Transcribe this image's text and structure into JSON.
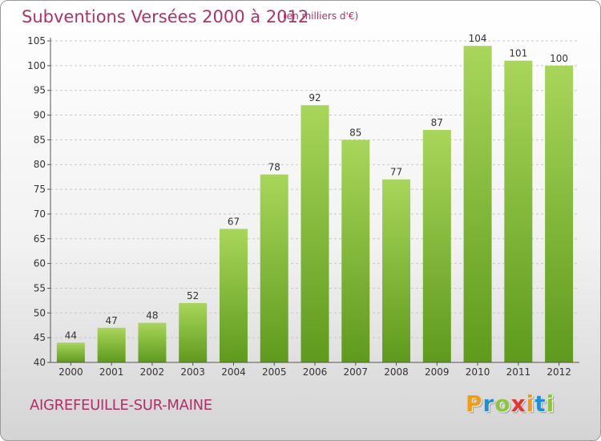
{
  "header": {
    "title": "Subventions Versées 2000 à 2012",
    "subtitle": "(en milliers d'€)"
  },
  "footer": {
    "commune": "AIGREFEUILLE-SUR-MAINE",
    "brand_letters": [
      "P",
      "r",
      "o",
      "x",
      "i",
      "t",
      "i"
    ],
    "brand_colors": [
      "#f39c12",
      "#1f8fd6",
      "#8cc63f",
      "#e8342f",
      "#f39c12",
      "#1f8fd6",
      "#8cc63f"
    ]
  },
  "chart_data": {
    "type": "bar",
    "categories": [
      "2000",
      "2001",
      "2002",
      "2003",
      "2004",
      "2005",
      "2006",
      "2007",
      "2008",
      "2009",
      "2010",
      "2011",
      "2012"
    ],
    "values": [
      44,
      47,
      48,
      52,
      67,
      78,
      92,
      85,
      77,
      87,
      104,
      101,
      100
    ],
    "title": "Subventions Versées 2000 à 2012",
    "subtitle": "(en milliers d'€)",
    "xlabel": "",
    "ylabel": "",
    "ylim": [
      40,
      105
    ],
    "yticks": [
      40,
      45,
      50,
      55,
      60,
      65,
      70,
      75,
      80,
      85,
      90,
      95,
      100,
      105
    ],
    "grid": true,
    "bar_color_top": "#a8d65a",
    "bar_color_bottom": "#5e9a1c"
  }
}
